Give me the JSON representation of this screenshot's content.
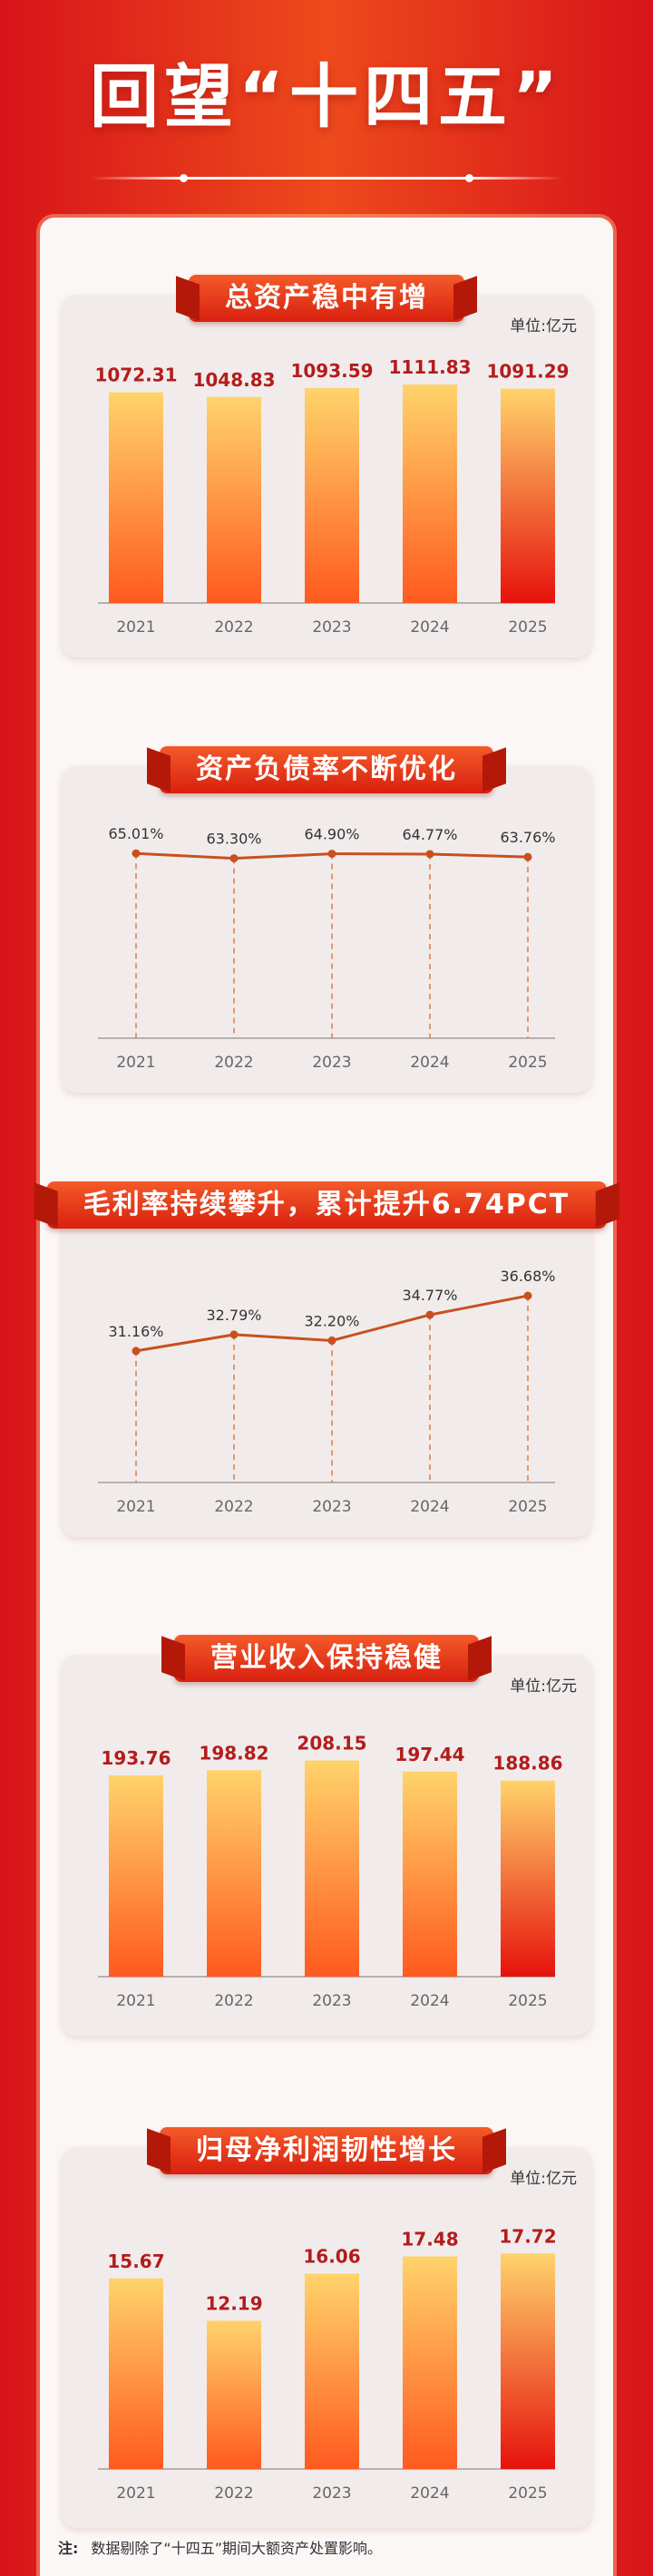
{
  "header": {
    "title": "回望“十四五”"
  },
  "chart_data": [
    {
      "type": "bar",
      "title": "总资产稳中有增",
      "unit": "单位:亿元",
      "categories": [
        "2021",
        "2022",
        "2023",
        "2024",
        "2025"
      ],
      "values": [
        1072.31,
        1048.83,
        1093.59,
        1111.83,
        1091.29
      ],
      "value_labels": [
        "1072.31",
        "1048.83",
        "1093.59",
        "1111.83",
        "1091.29"
      ],
      "ylim": [
        0,
        1200
      ],
      "highlight_last": true
    },
    {
      "type": "line",
      "title": "资产负债率不断优化",
      "unit": "",
      "categories": [
        "2021",
        "2022",
        "2023",
        "2024",
        "2025"
      ],
      "values": [
        65.01,
        63.3,
        64.9,
        64.77,
        63.76
      ],
      "value_labels": [
        "65.01%",
        "63.30%",
        "64.90%",
        "64.77%",
        "63.76%"
      ],
      "ylim": [
        0,
        67
      ]
    },
    {
      "type": "line",
      "title": "毛利率持续攀升，累计提升6.74PCT",
      "unit": "",
      "categories": [
        "2021",
        "2022",
        "2023",
        "2024",
        "2025"
      ],
      "values": [
        31.16,
        32.79,
        32.2,
        34.77,
        36.68
      ],
      "value_labels": [
        "31.16%",
        "32.79%",
        "32.20%",
        "34.77%",
        "36.68%"
      ],
      "ylim": [
        18,
        37.5
      ]
    },
    {
      "type": "bar",
      "title": "营业收入保持稳健",
      "unit": "单位:亿元",
      "categories": [
        "2021",
        "2022",
        "2023",
        "2024",
        "2025"
      ],
      "values": [
        193.76,
        198.82,
        208.15,
        197.44,
        188.86
      ],
      "value_labels": [
        "193.76",
        "198.82",
        "208.15",
        "197.44",
        "188.86"
      ],
      "ylim": [
        0,
        227
      ],
      "highlight_last": true
    },
    {
      "type": "bar",
      "title": "归母净利润韧性增长",
      "unit": "单位:亿元",
      "categories": [
        "2021",
        "2022",
        "2023",
        "2024",
        "2025"
      ],
      "values": [
        15.67,
        12.19,
        16.06,
        17.48,
        17.72
      ],
      "value_labels": [
        "15.67",
        "12.19",
        "16.06",
        "17.48",
        "17.72"
      ],
      "ylim": [
        0,
        20.5
      ],
      "highlight_last": true
    }
  ],
  "footnote": {
    "label": "注:",
    "text": "数据剔除了“十四五”期间大额资产处置影响。"
  },
  "colors": {
    "bar_top": "#ffd36b",
    "bar_bottom": "#ff5a1f",
    "bar_last_bottom": "#e6120c",
    "value_label": "#b41c1c",
    "line": "#c8501e",
    "axis": "#b7b0ad",
    "tick": "#666666"
  }
}
